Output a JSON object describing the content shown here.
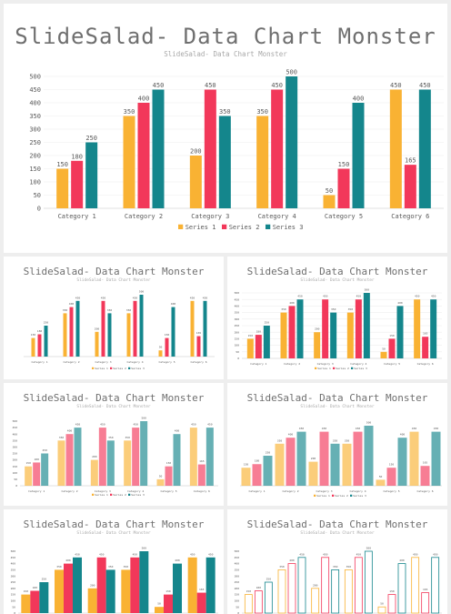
{
  "title": "SlideSalad- Data Chart Monster",
  "subtitle": "SlideSalad- Data Chart Monster",
  "colors": {
    "series1": "#F9B233",
    "series2": "#F2385A",
    "series3": "#14868C",
    "axis": "#d9d9d9",
    "text": "#595959"
  },
  "chart_data": {
    "type": "bar",
    "categories": [
      "Category 1",
      "Category 2",
      "Category 3",
      "Category 4",
      "Category 5",
      "Category 6"
    ],
    "series": [
      {
        "name": "Series 1",
        "values": [
          150,
          350,
          200,
          350,
          50,
          450
        ]
      },
      {
        "name": "Series 2",
        "values": [
          180,
          400,
          450,
          450,
          150,
          165
        ]
      },
      {
        "name": "Series 3",
        "values": [
          250,
          450,
          350,
          500,
          400,
          450
        ]
      }
    ],
    "ylim": [
      0,
      500
    ],
    "yticks": [
      0,
      50,
      100,
      150,
      200,
      250,
      300,
      350,
      400,
      450,
      500
    ],
    "legend": "bottom"
  }
}
